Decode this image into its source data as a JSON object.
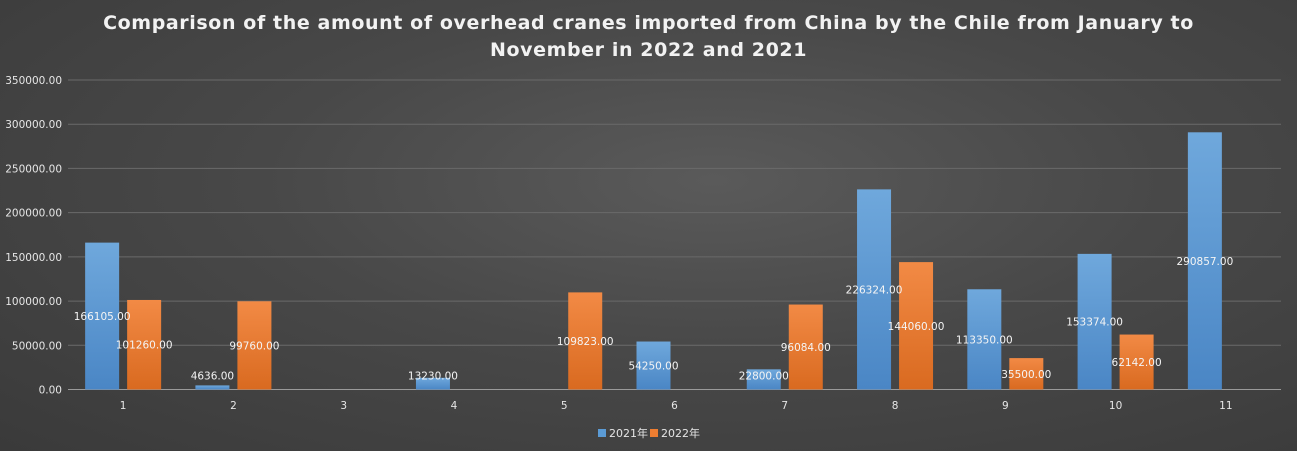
{
  "chart_data": {
    "type": "bar",
    "title_lines": [
      "Comparison of the amount of overhead cranes imported from China by the Chile from January to",
      "November in 2022 and 2021"
    ],
    "categories": [
      "1",
      "2",
      "3",
      "4",
      "5",
      "6",
      "7",
      "8",
      "9",
      "10",
      "11"
    ],
    "ylim": [
      0,
      350000
    ],
    "yticks": [
      0,
      50000,
      100000,
      150000,
      200000,
      250000,
      300000,
      350000
    ],
    "ytick_labels": [
      "0.00",
      "50000.00",
      "100000.00",
      "150000.00",
      "200000.00",
      "250000.00",
      "300000.00",
      "350000.00"
    ],
    "grid": true,
    "legend_position": "bottom",
    "series": [
      {
        "name": "2021年",
        "color": "#5b9bd5",
        "values": [
          166105,
          4636,
          null,
          13230,
          null,
          54250,
          22800,
          226324,
          113350,
          153374,
          290857
        ],
        "labels": [
          "166105.00",
          "4636.00",
          "",
          "13230.00",
          "",
          "54250.00",
          "22800.00",
          "226324.00",
          "113350.00",
          "153374.00",
          "290857.00"
        ]
      },
      {
        "name": "2022年",
        "color": "#ed7d31",
        "values": [
          101260,
          99760,
          null,
          null,
          109823,
          null,
          96084,
          144060,
          35500,
          62142,
          null
        ],
        "labels": [
          "101260.00",
          "99760.00",
          "",
          "",
          "109823.00",
          "",
          "96084.00",
          "144060.00",
          "35500.00",
          "62142.00",
          ""
        ]
      }
    ]
  }
}
